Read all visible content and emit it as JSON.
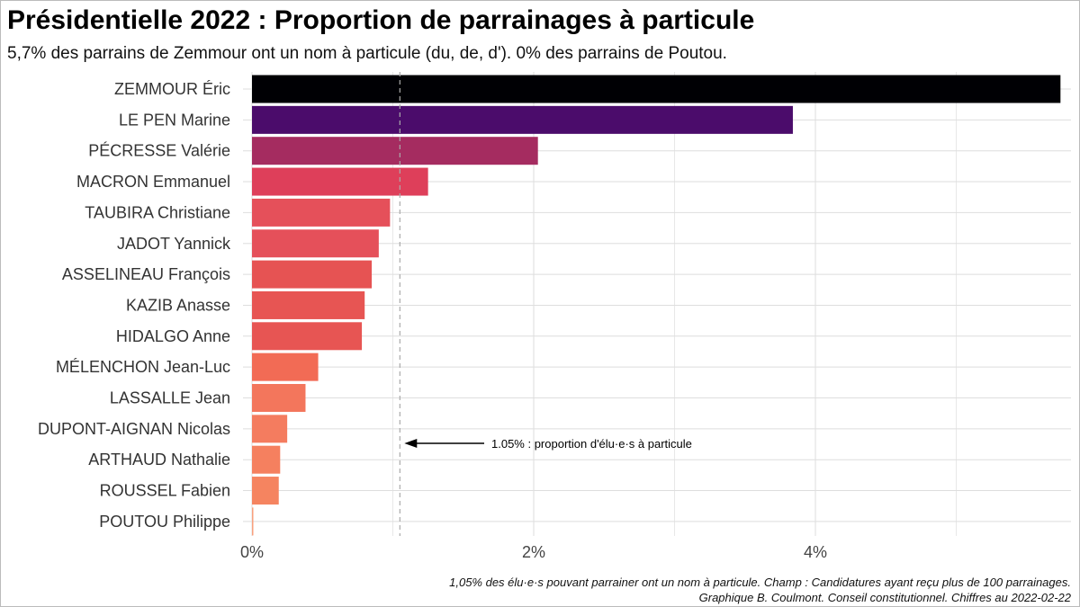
{
  "title": "Présidentielle 2022 : Proportion de parrainages à particule",
  "subtitle": "5,7% des parrains de Zemmour ont un nom à particule (du, de, d'). 0% des parrains de Poutou.",
  "caption": [
    "1,05% des élu·e·s pouvant parrainer ont un nom à particule. Champ : Candidatures ayant reçu plus de 100 parrainages.",
    "Graphique B. Coulmont. Conseil constitutionnel. Chiffres au 2022-02-22"
  ],
  "chart_data": {
    "type": "bar",
    "orientation": "horizontal",
    "title": "Présidentielle 2022 : Proportion de parrainages à particule",
    "xlabel": "",
    "ylabel": "",
    "xlim": [
      0,
      5.75
    ],
    "x_ticks": [
      0,
      2,
      4
    ],
    "x_tick_labels": [
      "0%",
      "2%",
      "4%"
    ],
    "grid": true,
    "legend": "none",
    "categories": [
      "ZEMMOUR Éric",
      "LE PEN Marine",
      "PÉCRESSE Valérie",
      "MACRON Emmanuel",
      "TAUBIRA Christiane",
      "JADOT Yannick",
      "ASSELINEAU François",
      "KAZIB Anasse",
      "HIDALGO Anne",
      "MÉLENCHON Jean-Luc",
      "LASSALLE Jean",
      "DUPONT-AIGNAN Nicolas",
      "ARTHAUD Nathalie",
      "ROUSSEL Fabien",
      "POUTOU Philippe"
    ],
    "values": [
      5.74,
      3.84,
      2.03,
      1.25,
      0.98,
      0.9,
      0.85,
      0.8,
      0.78,
      0.47,
      0.38,
      0.25,
      0.2,
      0.19,
      0.0
    ],
    "colors": [
      "#000004",
      "#4b0c6b",
      "#a52c60",
      "#de3f5a",
      "#e5505a",
      "#e5505a",
      "#e65353",
      "#e75553",
      "#e75553",
      "#f26b55",
      "#f3765c",
      "#f47c5f",
      "#f5805f",
      "#f58460",
      "#f8a07e"
    ],
    "reference_line": {
      "value": 1.05
    },
    "annotation": {
      "text": "1.05% : proportion d'élu·e·s à particule",
      "arrow_to": 1.05
    }
  }
}
